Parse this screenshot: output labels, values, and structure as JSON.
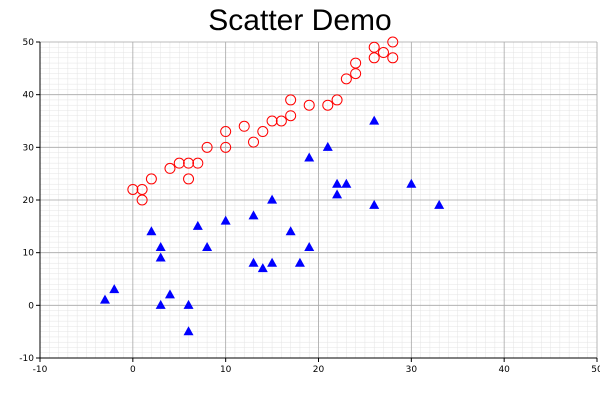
{
  "chart_data": {
    "type": "scatter",
    "title": "Scatter Demo",
    "xlabel": "",
    "ylabel": "",
    "xlim": [
      -10,
      50
    ],
    "ylim": [
      -10,
      50
    ],
    "x_ticks": [
      "-10",
      "0",
      "10",
      "20",
      "30",
      "40",
      "50"
    ],
    "y_ticks": [
      "-10",
      "0",
      "10",
      "20",
      "30",
      "40",
      "50"
    ],
    "grid": true,
    "legend": "none",
    "series": [
      {
        "marker": "open-circle",
        "color": "#ff0000",
        "points": [
          [
            0,
            22
          ],
          [
            1,
            22
          ],
          [
            1,
            20
          ],
          [
            2,
            24
          ],
          [
            4,
            26
          ],
          [
            5,
            27
          ],
          [
            6,
            27
          ],
          [
            6,
            24
          ],
          [
            7,
            27
          ],
          [
            8,
            30
          ],
          [
            10,
            30
          ],
          [
            10,
            33
          ],
          [
            12,
            34
          ],
          [
            13,
            31
          ],
          [
            14,
            33
          ],
          [
            15,
            35
          ],
          [
            16,
            35
          ],
          [
            17,
            36
          ],
          [
            17,
            39
          ],
          [
            19,
            38
          ],
          [
            21,
            38
          ],
          [
            22,
            39
          ],
          [
            23,
            43
          ],
          [
            24,
            44
          ],
          [
            24,
            46
          ],
          [
            26,
            47
          ],
          [
            26,
            49
          ],
          [
            27,
            48
          ],
          [
            28,
            47
          ],
          [
            28,
            50
          ]
        ]
      },
      {
        "marker": "filled-triangle",
        "color": "#0000ff",
        "points": [
          [
            -3,
            1
          ],
          [
            -2,
            3
          ],
          [
            2,
            14
          ],
          [
            3,
            11
          ],
          [
            3,
            9
          ],
          [
            3,
            0
          ],
          [
            4,
            2
          ],
          [
            6,
            0
          ],
          [
            6,
            -5
          ],
          [
            7,
            15
          ],
          [
            8,
            11
          ],
          [
            10,
            16
          ],
          [
            13,
            17
          ],
          [
            13,
            8
          ],
          [
            14,
            7
          ],
          [
            15,
            8
          ],
          [
            15,
            20
          ],
          [
            17,
            14
          ],
          [
            18,
            8
          ],
          [
            19,
            11
          ],
          [
            19,
            28
          ],
          [
            21,
            30
          ],
          [
            22,
            23
          ],
          [
            22,
            21
          ],
          [
            23,
            23
          ],
          [
            26,
            35
          ],
          [
            26,
            19
          ],
          [
            30,
            23
          ],
          [
            33,
            19
          ]
        ]
      }
    ]
  }
}
